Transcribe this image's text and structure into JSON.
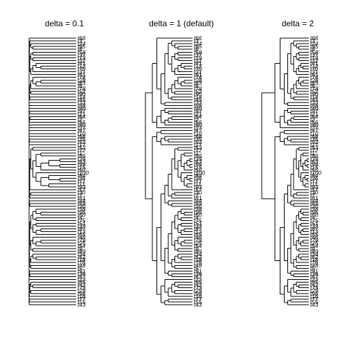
{
  "panels": [
    {
      "title": "delta = 0.1",
      "delta": 0.1
    },
    {
      "title": "delta = 1 (default)",
      "delta": 1
    },
    {
      "title": "delta = 2",
      "delta": 2
    }
  ],
  "tips": [
    "t66",
    "t3",
    "t24",
    "t95",
    "t8",
    "t58",
    "t37",
    "t19",
    "t22",
    "t41",
    "t12",
    "t70",
    "t31",
    "t61",
    "t74",
    "t28",
    "t83",
    "t6",
    "t78",
    "t52",
    "t90",
    "t14",
    "t45",
    "t33",
    "t88",
    "t40",
    "t97",
    "t21",
    "t64",
    "t2",
    "t56",
    "t80",
    "t27",
    "t47",
    "t10",
    "t68",
    "t35",
    "t92",
    "t17",
    "t53",
    "t72",
    "t1",
    "t86",
    "t39",
    "t63",
    "t99",
    "t15",
    "t50",
    "t100",
    "t84",
    "t26",
    "t71",
    "t11",
    "t93",
    "t57",
    "t30",
    "t7",
    "t81",
    "t44",
    "t69",
    "t20",
    "t38",
    "t96",
    "t60",
    "t4",
    "t75",
    "t51",
    "t32",
    "t87",
    "t13",
    "t65",
    "t46",
    "t79",
    "t25",
    "t54",
    "t9",
    "t89",
    "t34",
    "t62",
    "t18",
    "t76",
    "t48",
    "t5",
    "t91",
    "t36",
    "t67",
    "t23",
    "t85",
    "t42",
    "t73",
    "t29",
    "t98",
    "t16",
    "t77",
    "t55",
    "t43"
  ],
  "clades": [
    33,
    6,
    47,
    10
  ]
}
